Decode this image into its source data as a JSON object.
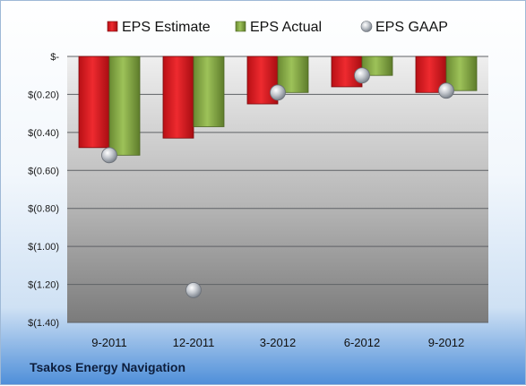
{
  "chart_data": {
    "type": "bar",
    "categories": [
      "9-2011",
      "12-2011",
      "3-2012",
      "6-2012",
      "9-2012"
    ],
    "series": [
      {
        "name": "EPS Estimate",
        "type": "bar",
        "color": "#d0171e",
        "values": [
          -0.48,
          -0.43,
          -0.25,
          -0.16,
          -0.19
        ]
      },
      {
        "name": "EPS Actual",
        "type": "bar",
        "color": "#7fa23e",
        "values": [
          -0.52,
          -0.37,
          -0.19,
          -0.1,
          -0.18
        ]
      },
      {
        "name": "EPS GAAP",
        "type": "scatter",
        "color": "#aab0b8",
        "values": [
          -0.52,
          -1.23,
          -0.19,
          -0.1,
          -0.18
        ]
      }
    ],
    "ylim": [
      -1.4,
      0
    ],
    "yticks": [
      0,
      -0.2,
      -0.4,
      -0.6,
      -0.8,
      -1.0,
      -1.2,
      -1.4
    ],
    "ytick_labels": [
      "$-",
      "$(0.20)",
      "$(0.40)",
      "$(0.60)",
      "$(0.80)",
      "$(1.00)",
      "$(1.20)",
      "$(1.40)"
    ],
    "grid": true,
    "legend_position": "top"
  },
  "footer": {
    "company": "Tsakos Energy Navigation"
  }
}
